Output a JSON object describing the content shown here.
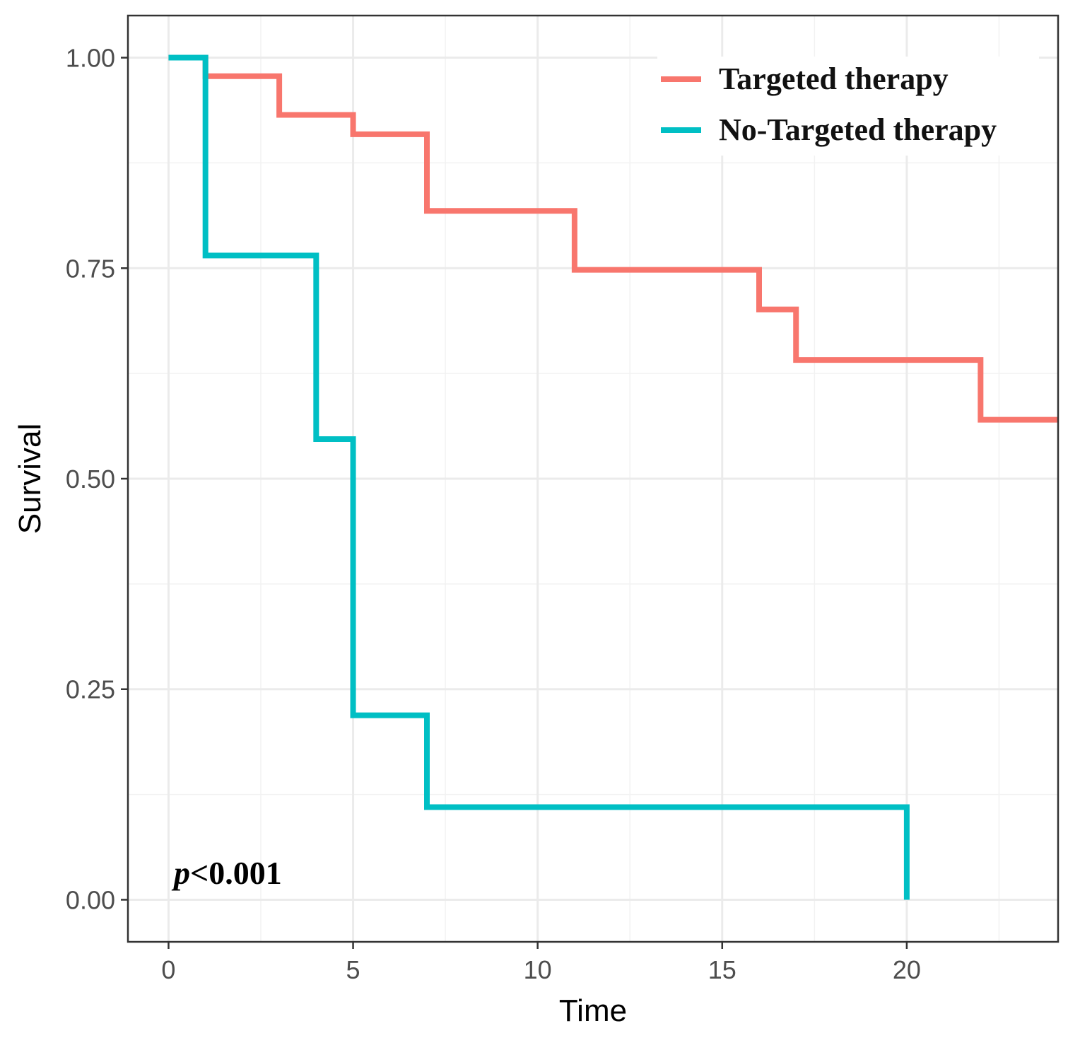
{
  "chart_data": {
    "type": "line",
    "step": true,
    "xlabel": "Time",
    "ylabel": "Survival",
    "xlim": [
      -1.1,
      24.1
    ],
    "ylim": [
      -0.05,
      1.05
    ],
    "x_ticks": [
      0,
      5,
      10,
      15,
      20
    ],
    "y_ticks": [
      0.0,
      0.25,
      0.5,
      0.75,
      1.0
    ],
    "x_tick_labels": [
      "0",
      "5",
      "10",
      "15",
      "20"
    ],
    "y_tick_labels": [
      "0.00",
      "0.25",
      "0.50",
      "0.75",
      "1.00"
    ],
    "grid": true,
    "legend_position": "top-right",
    "annotation": {
      "prefix": "p",
      "text": "<0.001"
    },
    "series": [
      {
        "name": "Targeted therapy",
        "color": "#F8766D",
        "x": [
          0,
          1,
          3,
          5,
          7,
          11,
          16,
          17,
          22,
          24.1
        ],
        "y": [
          1.0,
          0.978,
          0.932,
          0.909,
          0.818,
          0.748,
          0.701,
          0.641,
          0.57,
          0.57
        ]
      },
      {
        "name": "No-Targeted therapy",
        "color": "#00BFC4",
        "x": [
          0,
          1,
          4,
          5,
          7,
          20
        ],
        "y": [
          1.0,
          0.765,
          0.547,
          0.219,
          0.11,
          0.0
        ]
      }
    ]
  }
}
